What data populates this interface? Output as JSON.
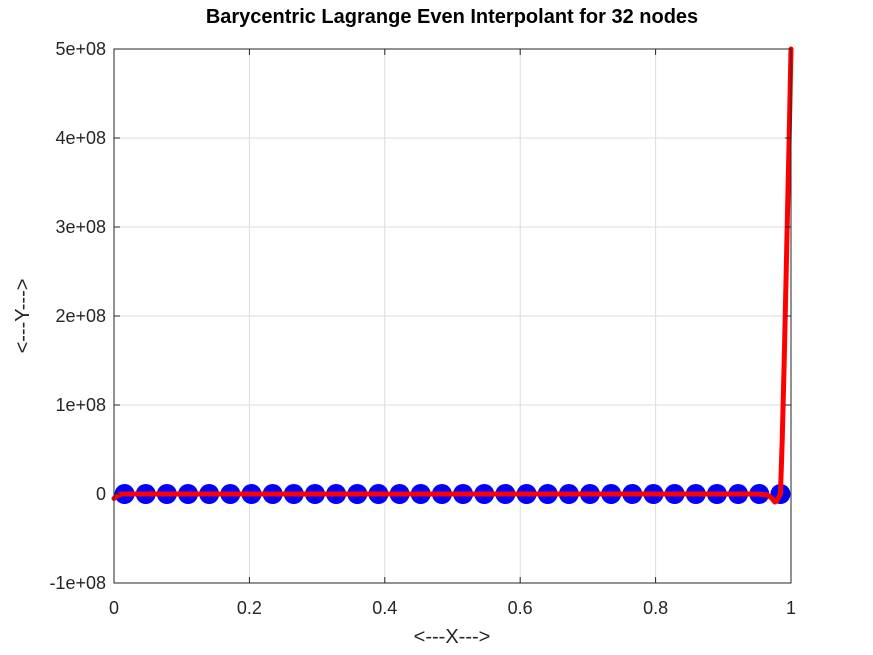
{
  "chart_data": {
    "type": "line",
    "title": "Barycentric Lagrange Even Interpolant for 32 nodes",
    "xlabel": "<---X--->",
    "ylabel": "<---Y--->",
    "xlim": [
      0,
      1
    ],
    "ylim": [
      -100000000,
      500000000
    ],
    "grid": true,
    "x_ticks": [
      0,
      0.2,
      0.4,
      0.6,
      0.8,
      1
    ],
    "x_tick_labels": [
      "0",
      "0.2",
      "0.4",
      "0.6",
      "0.8",
      "1"
    ],
    "y_ticks": [
      -100000000,
      0,
      100000000,
      200000000,
      300000000,
      400000000,
      500000000
    ],
    "y_tick_labels": [
      "-1e+08",
      "0",
      "1e+08",
      "2e+08",
      "3e+08",
      "4e+08",
      "5e+08"
    ],
    "series": [
      {
        "type": "scatter",
        "color": "#0000ff",
        "x": [
          0.0156,
          0.0469,
          0.0781,
          0.1094,
          0.1406,
          0.1719,
          0.2031,
          0.2344,
          0.2656,
          0.2969,
          0.3281,
          0.3594,
          0.3906,
          0.4219,
          0.4531,
          0.4844,
          0.5156,
          0.5469,
          0.5781,
          0.6094,
          0.6406,
          0.6719,
          0.7031,
          0.7344,
          0.7656,
          0.7969,
          0.8281,
          0.8594,
          0.8906,
          0.9219,
          0.9531,
          0.9844
        ],
        "y": [
          0,
          0,
          0,
          0,
          0,
          0,
          0,
          0,
          0,
          0,
          0,
          0,
          0,
          0,
          0,
          0,
          0,
          0,
          0,
          0,
          0,
          0,
          0,
          0,
          0,
          0,
          0,
          0,
          0,
          0,
          0,
          0
        ]
      },
      {
        "type": "line",
        "color": "#ff0000",
        "x": [
          0.0,
          0.005,
          0.01,
          0.05,
          0.2,
          0.5,
          0.8,
          0.95,
          0.965,
          0.972,
          0.976,
          0.979,
          0.9815,
          0.9844,
          0.987,
          0.99,
          0.9935,
          0.997,
          1.0
        ],
        "y": [
          -5000000,
          -2000000,
          0,
          0,
          0,
          0,
          0,
          0,
          -1000000,
          -5000000,
          -9000000,
          -8000000,
          -4000000,
          0,
          60000000,
          150000000,
          270000000,
          390000000,
          500000000
        ]
      }
    ]
  }
}
